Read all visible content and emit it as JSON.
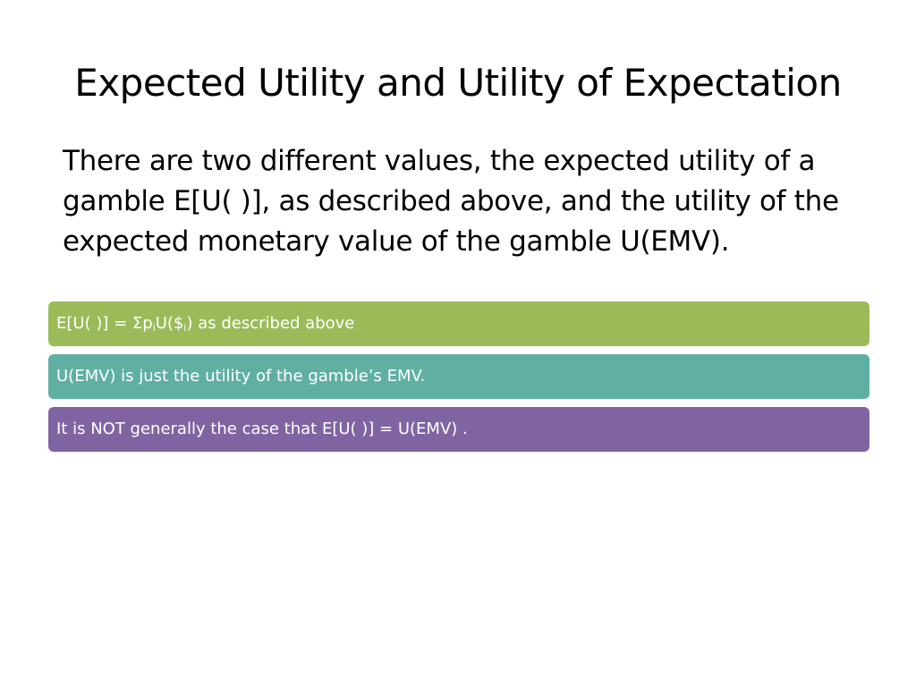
{
  "slide": {
    "title": "Expected Utility and Utility of Expectation",
    "body": "There are two different values, the expected utility of a gamble E[U( )], as described above, and the utility of the expected monetary value of the gamble U(EMV).",
    "bars": [
      {
        "parts": {
          "a": "E[U( )] = Σp",
          "sub1": "i",
          "b": "U($",
          "sub2": "i",
          "c": ") as described above"
        },
        "color": "#9bbb59"
      },
      {
        "text": "U(EMV) is just the utility of the gamble’s EMV.",
        "color": "#5fb0a3"
      },
      {
        "text": "It is NOT generally the case that E[U( )] = U(EMV) .",
        "color": "#8064a2"
      }
    ]
  }
}
